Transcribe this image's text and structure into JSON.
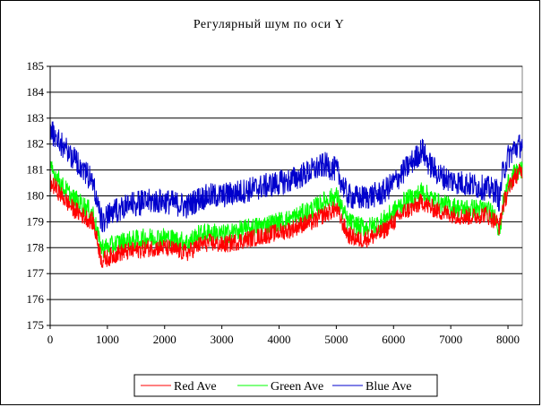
{
  "chart_data": {
    "type": "line",
    "title": "Регулярный шум по оси Y",
    "xlabel": "",
    "ylabel": "",
    "xlim": [
      0,
      8250
    ],
    "ylim": [
      175,
      185
    ],
    "x_ticks": [
      0,
      1000,
      2000,
      3000,
      4000,
      5000,
      6000,
      7000,
      8000
    ],
    "y_ticks": [
      175,
      176,
      177,
      178,
      179,
      180,
      181,
      182,
      183,
      184,
      185
    ],
    "x_tick_labels": [
      "0",
      "1000",
      "2000",
      "3000",
      "4000",
      "5000",
      "6000",
      "7000",
      "8000"
    ],
    "y_tick_labels": [
      "175",
      "176",
      "177",
      "178",
      "179",
      "180",
      "181",
      "182",
      "183",
      "184",
      "185"
    ],
    "grid": "horizontal",
    "legend_position": "bottom",
    "series": [
      {
        "name": "Red Ave",
        "color": "#ff0000",
        "noise": 0.35,
        "x": [
          0,
          100,
          200,
          400,
          600,
          750,
          850,
          900,
          1000,
          1200,
          1500,
          1800,
          2000,
          2200,
          2400,
          2600,
          2800,
          3000,
          3200,
          3400,
          3600,
          3800,
          4000,
          4200,
          4400,
          4600,
          4800,
          5000,
          5100,
          5200,
          5400,
          5600,
          5800,
          6000,
          6200,
          6400,
          6500,
          6600,
          6800,
          7000,
          7200,
          7400,
          7600,
          7800,
          7850,
          7900,
          8000,
          8100,
          8250
        ],
        "y": [
          180.5,
          180.3,
          180.0,
          179.5,
          179.2,
          179.0,
          178.0,
          177.5,
          177.6,
          177.8,
          177.9,
          178.0,
          178.0,
          177.9,
          177.8,
          178.1,
          178.2,
          178.1,
          178.2,
          178.3,
          178.4,
          178.5,
          178.6,
          178.7,
          178.9,
          179.0,
          179.3,
          179.5,
          179.0,
          178.5,
          178.3,
          178.4,
          178.6,
          179.0,
          179.4,
          179.6,
          179.8,
          179.6,
          179.4,
          179.3,
          179.2,
          179.2,
          179.3,
          179.0,
          178.8,
          179.5,
          180.2,
          180.7,
          181.0
        ]
      },
      {
        "name": "Green Ave",
        "color": "#00ff00",
        "noise": 0.4,
        "x": [
          0,
          100,
          200,
          400,
          600,
          750,
          850,
          900,
          1000,
          1200,
          1500,
          1800,
          2000,
          2200,
          2400,
          2600,
          2800,
          3000,
          3200,
          3400,
          3600,
          3800,
          4000,
          4200,
          4400,
          4600,
          4800,
          5000,
          5100,
          5200,
          5400,
          5600,
          5800,
          6000,
          6200,
          6400,
          6500,
          6600,
          6800,
          7000,
          7200,
          7400,
          7600,
          7800,
          7850,
          7900,
          8000,
          8100,
          8250
        ],
        "y": [
          181.0,
          180.8,
          180.4,
          179.9,
          179.6,
          179.3,
          178.3,
          178.0,
          178.0,
          178.2,
          178.3,
          178.4,
          178.4,
          178.3,
          178.2,
          178.5,
          178.6,
          178.5,
          178.6,
          178.7,
          178.8,
          178.9,
          179.0,
          179.1,
          179.3,
          179.5,
          179.8,
          180.0,
          179.5,
          179.0,
          178.8,
          178.8,
          179.0,
          179.4,
          179.8,
          180.0,
          180.2,
          180.0,
          179.7,
          179.6,
          179.5,
          179.5,
          179.5,
          179.2,
          178.5,
          179.5,
          180.5,
          180.8,
          181.0
        ]
      },
      {
        "name": "Blue Ave",
        "color": "#0000cc",
        "noise": 0.5,
        "x": [
          0,
          100,
          200,
          400,
          600,
          750,
          850,
          900,
          1000,
          1200,
          1500,
          1800,
          2000,
          2200,
          2400,
          2600,
          2800,
          3000,
          3200,
          3400,
          3600,
          3800,
          4000,
          4200,
          4400,
          4600,
          4800,
          5000,
          5100,
          5200,
          5400,
          5600,
          5800,
          6000,
          6200,
          6400,
          6500,
          6600,
          6800,
          7000,
          7200,
          7400,
          7600,
          7800,
          7850,
          7900,
          8000,
          8100,
          8250
        ],
        "y": [
          182.5,
          182.3,
          182.0,
          181.5,
          181.0,
          180.5,
          179.5,
          179.0,
          179.2,
          179.5,
          179.7,
          179.8,
          179.8,
          179.7,
          179.6,
          179.9,
          180.0,
          180.0,
          180.1,
          180.2,
          180.3,
          180.4,
          180.5,
          180.6,
          180.8,
          181.0,
          181.2,
          181.0,
          180.5,
          180.0,
          179.9,
          180.0,
          180.1,
          180.5,
          181.0,
          181.5,
          181.8,
          181.3,
          180.8,
          180.6,
          180.5,
          180.4,
          180.3,
          180.2,
          179.8,
          180.8,
          181.5,
          181.8,
          182.0
        ]
      }
    ]
  }
}
